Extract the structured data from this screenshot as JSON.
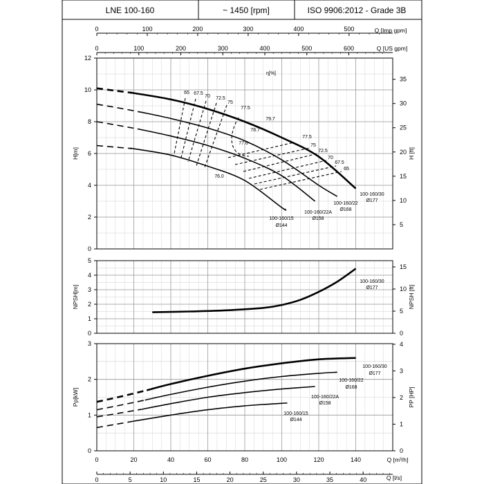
{
  "header": {
    "model": "LNE 100-160",
    "speed": "~ 1450 [rpm]",
    "standard": "ISO 9906:2012 - Grade 3B"
  },
  "chart_data": [
    {
      "type": "line",
      "panel": "head",
      "ylabel": "H[m]",
      "ylabel_right": "H [ft]",
      "ylim": [
        0,
        12
      ],
      "y_ticks": [
        "0",
        "2",
        "4",
        "6",
        "8",
        "10",
        "12"
      ],
      "right_ticks": [
        "5",
        "10",
        "15",
        "20",
        "25",
        "30",
        "35"
      ],
      "efficiency_label": "η[%]",
      "series": [
        {
          "name": "100-160/30",
          "diameter": "Ø177",
          "x": [
            0,
            20,
            40,
            60,
            80,
            100,
            120,
            140
          ],
          "values": [
            10.1,
            9.8,
            9.4,
            8.8,
            8.0,
            7.0,
            5.8,
            3.8
          ],
          "dashed_until": 19
        },
        {
          "name": "100-160/22",
          "diameter": "Ø168",
          "x": [
            0,
            20,
            40,
            60,
            80,
            100,
            120,
            130
          ],
          "values": [
            9.1,
            8.7,
            8.2,
            7.6,
            6.8,
            5.6,
            4.0,
            3.3
          ],
          "dashed_until": 25
        },
        {
          "name": "100-160/22A",
          "diameter": "Ø158",
          "x": [
            0,
            20,
            40,
            60,
            80,
            100,
            118
          ],
          "values": [
            8.0,
            7.6,
            7.1,
            6.5,
            5.7,
            4.6,
            3.0
          ],
          "dashed_until": 22
        },
        {
          "name": "100-160/15",
          "diameter": "Ø144",
          "x": [
            0,
            20,
            40,
            60,
            80,
            100,
            102
          ],
          "values": [
            6.5,
            6.3,
            5.9,
            5.2,
            4.3,
            2.6,
            2.5
          ],
          "dashed_until": 19
        }
      ],
      "efficiency_values_left": [
        "65",
        "67.5",
        "70",
        "72.5",
        "75",
        "77.5",
        "79.7",
        "78.7",
        "77.6",
        "76.0"
      ],
      "efficiency_values_right": [
        "77.5",
        "75",
        "72.5",
        "70",
        "67.5",
        "65"
      ]
    },
    {
      "type": "line",
      "panel": "npsh",
      "ylabel": "NPSH[m]",
      "ylabel_right": "NPSH [ft]",
      "ylim": [
        0,
        5
      ],
      "y_ticks": [
        "0",
        "1",
        "2",
        "3",
        "4",
        "5"
      ],
      "right_ticks": [
        "0",
        "5",
        "10",
        "15"
      ],
      "series": [
        {
          "name": "100-160/30",
          "diameter": "Ø177",
          "x": [
            30,
            50,
            70,
            90,
            100,
            110,
            120,
            130,
            140
          ],
          "values": [
            1.45,
            1.5,
            1.58,
            1.75,
            1.95,
            2.3,
            2.85,
            3.55,
            4.45
          ]
        }
      ]
    },
    {
      "type": "line",
      "panel": "power",
      "ylabel": "Pp[kW]",
      "ylabel_right": "PP [HP]",
      "ylim": [
        0,
        3
      ],
      "y_ticks": [
        "0",
        "1",
        "2",
        "3"
      ],
      "right_ticks": [
        "0",
        "1",
        "2",
        "3",
        "4"
      ],
      "series": [
        {
          "name": "100-160/30",
          "diameter": "Ø177",
          "x": [
            0,
            20,
            40,
            60,
            80,
            100,
            120,
            140
          ],
          "values": [
            1.37,
            1.6,
            1.87,
            2.1,
            2.3,
            2.45,
            2.56,
            2.6
          ],
          "dashed_until": 27
        },
        {
          "name": "100-160/22",
          "diameter": "Ø168",
          "x": [
            0,
            20,
            40,
            60,
            80,
            100,
            120,
            130
          ],
          "values": [
            1.15,
            1.35,
            1.58,
            1.78,
            1.95,
            2.08,
            2.17,
            2.2
          ],
          "dashed_until": 26
        },
        {
          "name": "100-160/22A",
          "diameter": "Ø158",
          "x": [
            0,
            20,
            40,
            60,
            80,
            100,
            118
          ],
          "values": [
            0.95,
            1.12,
            1.32,
            1.5,
            1.63,
            1.73,
            1.8
          ],
          "dashed_until": 24
        },
        {
          "name": "100-160/15",
          "diameter": "Ø144",
          "x": [
            0,
            20,
            40,
            60,
            80,
            100,
            103
          ],
          "values": [
            0.65,
            0.83,
            1.0,
            1.15,
            1.26,
            1.33,
            1.34
          ],
          "dashed_until": 20
        }
      ]
    }
  ],
  "axes": {
    "imp_gpm": {
      "label": "Q [Imp gpm]",
      "ticks": [
        "0",
        "100",
        "200",
        "300",
        "400",
        "500"
      ]
    },
    "us_gpm": {
      "label": "Q [US gpm]",
      "ticks": [
        "0",
        "100",
        "200",
        "300",
        "400",
        "500",
        "600"
      ]
    },
    "m3h": {
      "label": "Q [m³/h]",
      "ticks": [
        "0",
        "20",
        "40",
        "60",
        "80",
        "100",
        "120",
        "140"
      ]
    },
    "ls": {
      "label": "Q [l/s]",
      "ticks": [
        "0",
        "5",
        "10",
        "15",
        "20",
        "25",
        "30",
        "35",
        "40"
      ]
    }
  },
  "colors": {
    "line": "#000000",
    "grid": "#bbbbbb",
    "grid_major": "#888888"
  }
}
